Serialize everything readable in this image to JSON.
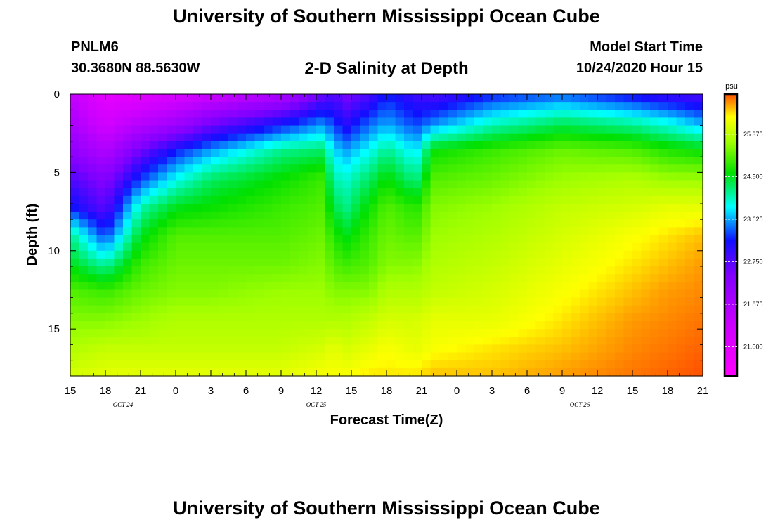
{
  "header": {
    "title": "University of Southern Mississippi Ocean Cube",
    "station": "PNLM6",
    "coordinates": "30.3680N 88.5630W",
    "subtitle": "2-D Salinity at Depth",
    "start_label": "Model Start Time",
    "start_date": "10/24/2020 Hour 15"
  },
  "footer": {
    "title": "University of Southern Mississippi Ocean Cube"
  },
  "chart_data": {
    "type": "heatmap",
    "title": "2-D Salinity at Depth",
    "xlabel": "Forecast Time(Z)",
    "ylabel": "Depth (ft)",
    "x_range_hours": [
      0,
      54
    ],
    "x_ticks": [
      {
        "h": 0,
        "label": "15"
      },
      {
        "h": 3,
        "label": "18"
      },
      {
        "h": 6,
        "label": "21"
      },
      {
        "h": 9,
        "label": "0"
      },
      {
        "h": 12,
        "label": "3"
      },
      {
        "h": 15,
        "label": "6"
      },
      {
        "h": 18,
        "label": "9"
      },
      {
        "h": 21,
        "label": "12"
      },
      {
        "h": 24,
        "label": "15"
      },
      {
        "h": 27,
        "label": "18"
      },
      {
        "h": 30,
        "label": "21"
      },
      {
        "h": 33,
        "label": "0"
      },
      {
        "h": 36,
        "label": "3"
      },
      {
        "h": 39,
        "label": "6"
      },
      {
        "h": 42,
        "label": "9"
      },
      {
        "h": 45,
        "label": "12"
      },
      {
        "h": 48,
        "label": "15"
      },
      {
        "h": 51,
        "label": "18"
      },
      {
        "h": 54,
        "label": "21"
      }
    ],
    "date_labels": [
      {
        "h": 4.5,
        "label": "OCT 24"
      },
      {
        "h": 21,
        "label": "OCT 25"
      },
      {
        "h": 43.5,
        "label": "OCT 26"
      }
    ],
    "y_range": [
      0,
      18
    ],
    "y_ticks": [
      0,
      5,
      10,
      15
    ],
    "colorbar": {
      "unit": "psu",
      "min": 20.4,
      "max": 26.2,
      "tick_labels": [
        "21.000",
        "21.875",
        "22.750",
        "23.625",
        "24.500",
        "25.375"
      ]
    },
    "profiles": [
      {
        "h": 0,
        "values": [
          21.6,
          21.9,
          22.3,
          22.8,
          23.2,
          24.2,
          24.5,
          24.9,
          25.1,
          25.3,
          25.5
        ]
      },
      {
        "h": 3,
        "values": [
          20.9,
          21.3,
          21.8,
          22.4,
          22.7,
          23.3,
          24.1,
          24.8,
          25.1,
          25.4,
          25.6
        ]
      },
      {
        "h": 6,
        "values": [
          21.0,
          21.7,
          22.6,
          23.3,
          24.1,
          24.5,
          24.8,
          25.0,
          25.2,
          25.4,
          25.6
        ]
      },
      {
        "h": 9,
        "values": [
          21.2,
          22.0,
          23.2,
          23.9,
          24.5,
          24.9,
          25.0,
          25.1,
          25.3,
          25.4,
          25.6
        ]
      },
      {
        "h": 12,
        "values": [
          21.4,
          22.5,
          23.6,
          24.3,
          24.6,
          24.9,
          25.0,
          25.1,
          25.3,
          25.4,
          25.6
        ]
      },
      {
        "h": 18,
        "values": [
          21.8,
          23.1,
          24.2,
          24.6,
          24.8,
          24.9,
          25.0,
          25.2,
          25.3,
          25.4,
          25.6
        ]
      },
      {
        "h": 21.5,
        "values": [
          22.6,
          23.5,
          24.3,
          24.8,
          24.9,
          25.0,
          25.1,
          25.2,
          25.3,
          25.5,
          25.7
        ]
      },
      {
        "h": 22.5,
        "values": [
          22.8,
          23.3,
          23.8,
          24.1,
          24.4,
          24.7,
          24.9,
          25.1,
          25.3,
          25.6,
          25.7
        ]
      },
      {
        "h": 23.5,
        "values": [
          22.5,
          23.0,
          23.6,
          24.0,
          24.2,
          24.5,
          24.8,
          25.1,
          25.3,
          25.5,
          25.7
        ]
      },
      {
        "h": 25.5,
        "values": [
          22.8,
          23.4,
          23.9,
          24.3,
          24.6,
          24.8,
          24.9,
          25.1,
          25.4,
          25.6,
          25.8
        ]
      },
      {
        "h": 27,
        "values": [
          23.2,
          23.6,
          24.2,
          24.6,
          24.9,
          25.0,
          25.1,
          25.3,
          25.5,
          25.7,
          25.8
        ]
      },
      {
        "h": 29.5,
        "values": [
          22.9,
          23.3,
          23.8,
          24.2,
          24.7,
          24.9,
          25.1,
          25.3,
          25.5,
          25.6,
          25.8
        ]
      },
      {
        "h": 31,
        "values": [
          22.8,
          23.5,
          24.6,
          24.9,
          25.1,
          25.2,
          25.3,
          25.4,
          25.6,
          25.7,
          25.9
        ]
      },
      {
        "h": 36,
        "values": [
          23.2,
          24.0,
          24.8,
          25.0,
          25.2,
          25.3,
          25.4,
          25.5,
          25.6,
          25.8,
          25.9
        ]
      },
      {
        "h": 42,
        "values": [
          23.4,
          24.3,
          25.0,
          25.2,
          25.4,
          25.5,
          25.6,
          25.7,
          25.8,
          25.9,
          26.0
        ]
      },
      {
        "h": 48,
        "values": [
          23.1,
          24.1,
          24.9,
          25.3,
          25.5,
          25.7,
          25.8,
          25.9,
          26.0,
          26.05,
          26.1
        ]
      },
      {
        "h": 51,
        "values": [
          22.9,
          23.9,
          24.7,
          25.2,
          25.6,
          25.8,
          25.9,
          26.0,
          26.05,
          26.1,
          26.15
        ]
      },
      {
        "h": 54,
        "values": [
          22.8,
          23.6,
          24.6,
          25.2,
          25.6,
          25.9,
          26.0,
          26.05,
          26.1,
          26.15,
          26.2
        ]
      }
    ]
  }
}
